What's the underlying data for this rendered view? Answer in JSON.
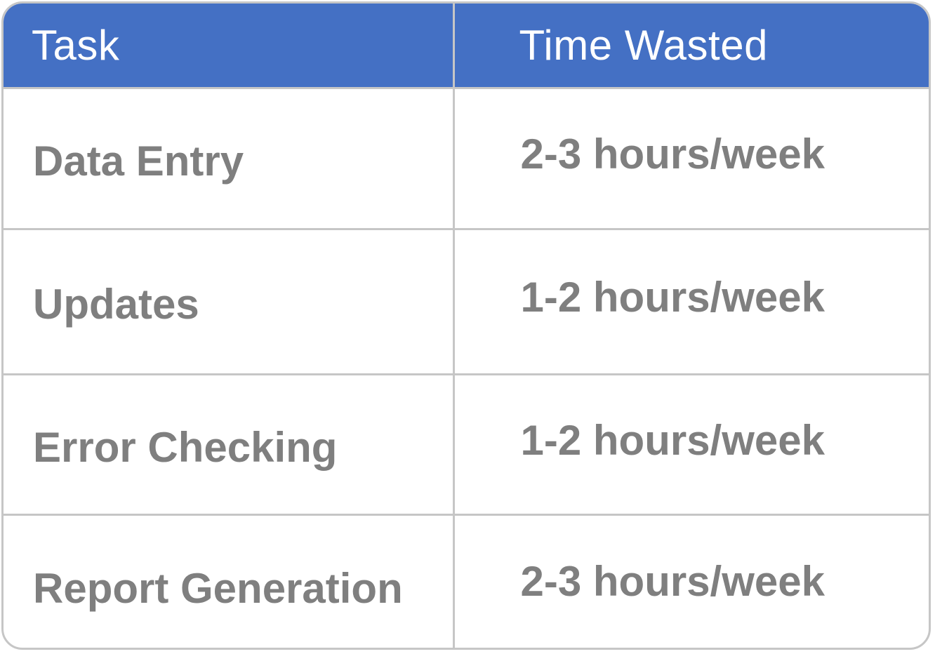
{
  "table": {
    "headers": [
      "Task",
      "Time Wasted"
    ],
    "rows": [
      [
        "Data Entry",
        "2-3 hours/week"
      ],
      [
        "Updates",
        "1-2 hours/week"
      ],
      [
        "Error Checking",
        "1-2 hours/week"
      ],
      [
        "Report Generation",
        "2-3 hours/week"
      ]
    ]
  },
  "colors": {
    "header_bg": "#4470c4",
    "header_text": "#ffffff",
    "cell_text": "#7f7f7f",
    "border": "#c6c6c6"
  }
}
